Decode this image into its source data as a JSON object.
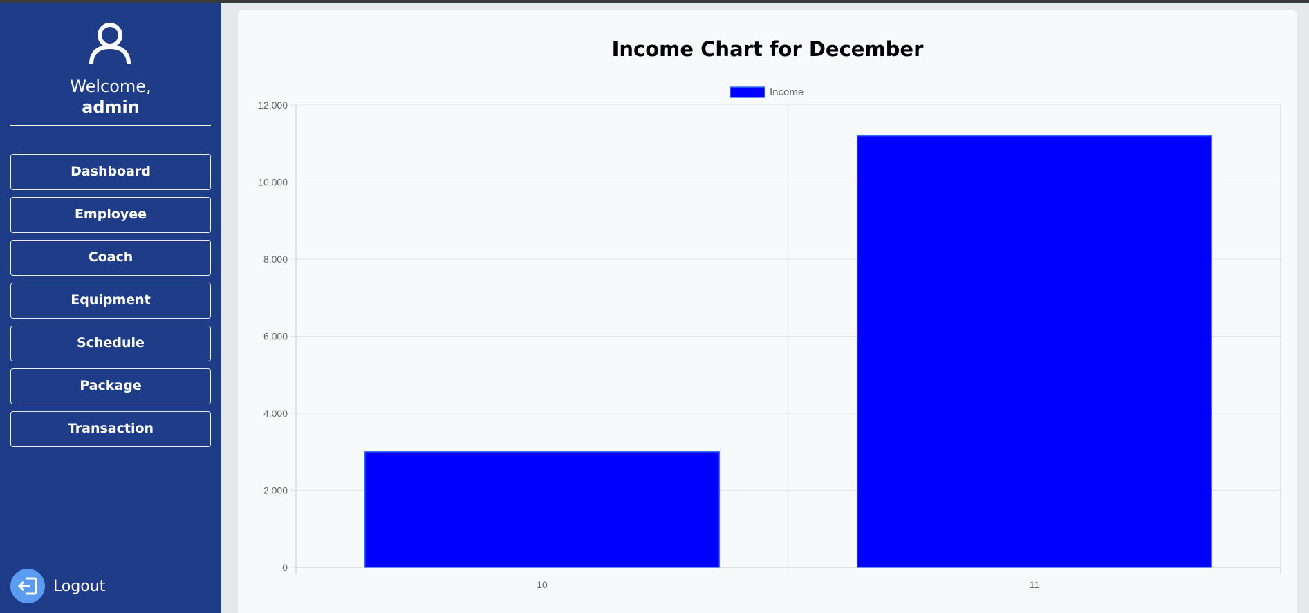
{
  "sidebar": {
    "avatar_icon": "user-icon",
    "welcome": "Welcome,",
    "username": "admin",
    "nav": [
      {
        "label": "Dashboard"
      },
      {
        "label": "Employee"
      },
      {
        "label": "Coach"
      },
      {
        "label": "Equipment"
      },
      {
        "label": "Schedule"
      },
      {
        "label": "Package"
      },
      {
        "label": "Transaction"
      }
    ],
    "logout": {
      "label": "Logout",
      "icon": "logout-icon"
    }
  },
  "colors": {
    "sidebar_bg": "#1f3c88",
    "bar_fill": "#0000ff",
    "logout_accent": "#5b9cf2"
  },
  "chart_data": {
    "type": "bar",
    "title": "Income Chart for December",
    "categories": [
      "10",
      "11"
    ],
    "series": [
      {
        "name": "Income",
        "values": [
          3000,
          11200
        ]
      }
    ],
    "ylim": [
      0,
      12000
    ],
    "yticks": [
      "0",
      "2,000",
      "4,000",
      "6,000",
      "8,000",
      "10,000",
      "12,000"
    ],
    "legend": "top-center",
    "grid": true
  }
}
